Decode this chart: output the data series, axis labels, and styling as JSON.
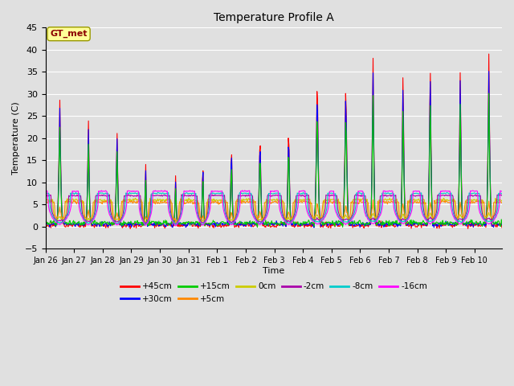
{
  "title": "Temperature Profile A",
  "xlabel": "Time",
  "ylabel": "Temperature (C)",
  "ylim": [
    -5,
    45
  ],
  "yticks": [
    -5,
    0,
    5,
    10,
    15,
    20,
    25,
    30,
    35,
    40,
    45
  ],
  "plot_bg_color": "#e0e0e0",
  "grid_color": "#ffffff",
  "annotation_text": "GT_met",
  "annotation_color": "#8b0000",
  "annotation_bg": "#ffff99",
  "series_colors": {
    "+45cm": "#ff0000",
    "+30cm": "#0000ff",
    "+15cm": "#00cc00",
    "+5cm": "#ff8800",
    "0cm": "#cccc00",
    "-2cm": "#aa00aa",
    "-8cm": "#00cccc",
    "-16cm": "#ff00ff"
  },
  "x_tick_labels": [
    "Jan 26",
    "Jan 27",
    "Jan 28",
    "Jan 29",
    "Jan 30",
    "Jan 31",
    "Feb 1",
    "Feb 2",
    "Feb 3",
    "Feb 4",
    "Feb 5",
    "Feb 6",
    "Feb 7",
    "Feb 8",
    "Feb 9",
    "Feb 10"
  ],
  "n_days": 16,
  "pts_per_day": 48,
  "spike_peaks": [
    29,
    25,
    23,
    16,
    12,
    16,
    21,
    23,
    25,
    36,
    35,
    40,
    37,
    40,
    37,
    39
  ],
  "spike_widths": [
    0.12,
    0.1,
    0.1,
    0.07,
    0.08,
    0.08,
    0.09,
    0.1,
    0.1,
    0.12,
    0.12,
    0.1,
    0.1,
    0.1,
    0.1,
    0.11
  ],
  "spike_times": [
    0.5,
    0.5,
    0.5,
    0.5,
    0.55,
    0.5,
    0.5,
    0.5,
    0.5,
    0.5,
    0.5,
    0.45,
    0.5,
    0.45,
    0.5,
    0.5
  ],
  "base_night": 0.5,
  "base_day_shallow": 7.0,
  "legend_ncol": [
    6,
    2
  ]
}
